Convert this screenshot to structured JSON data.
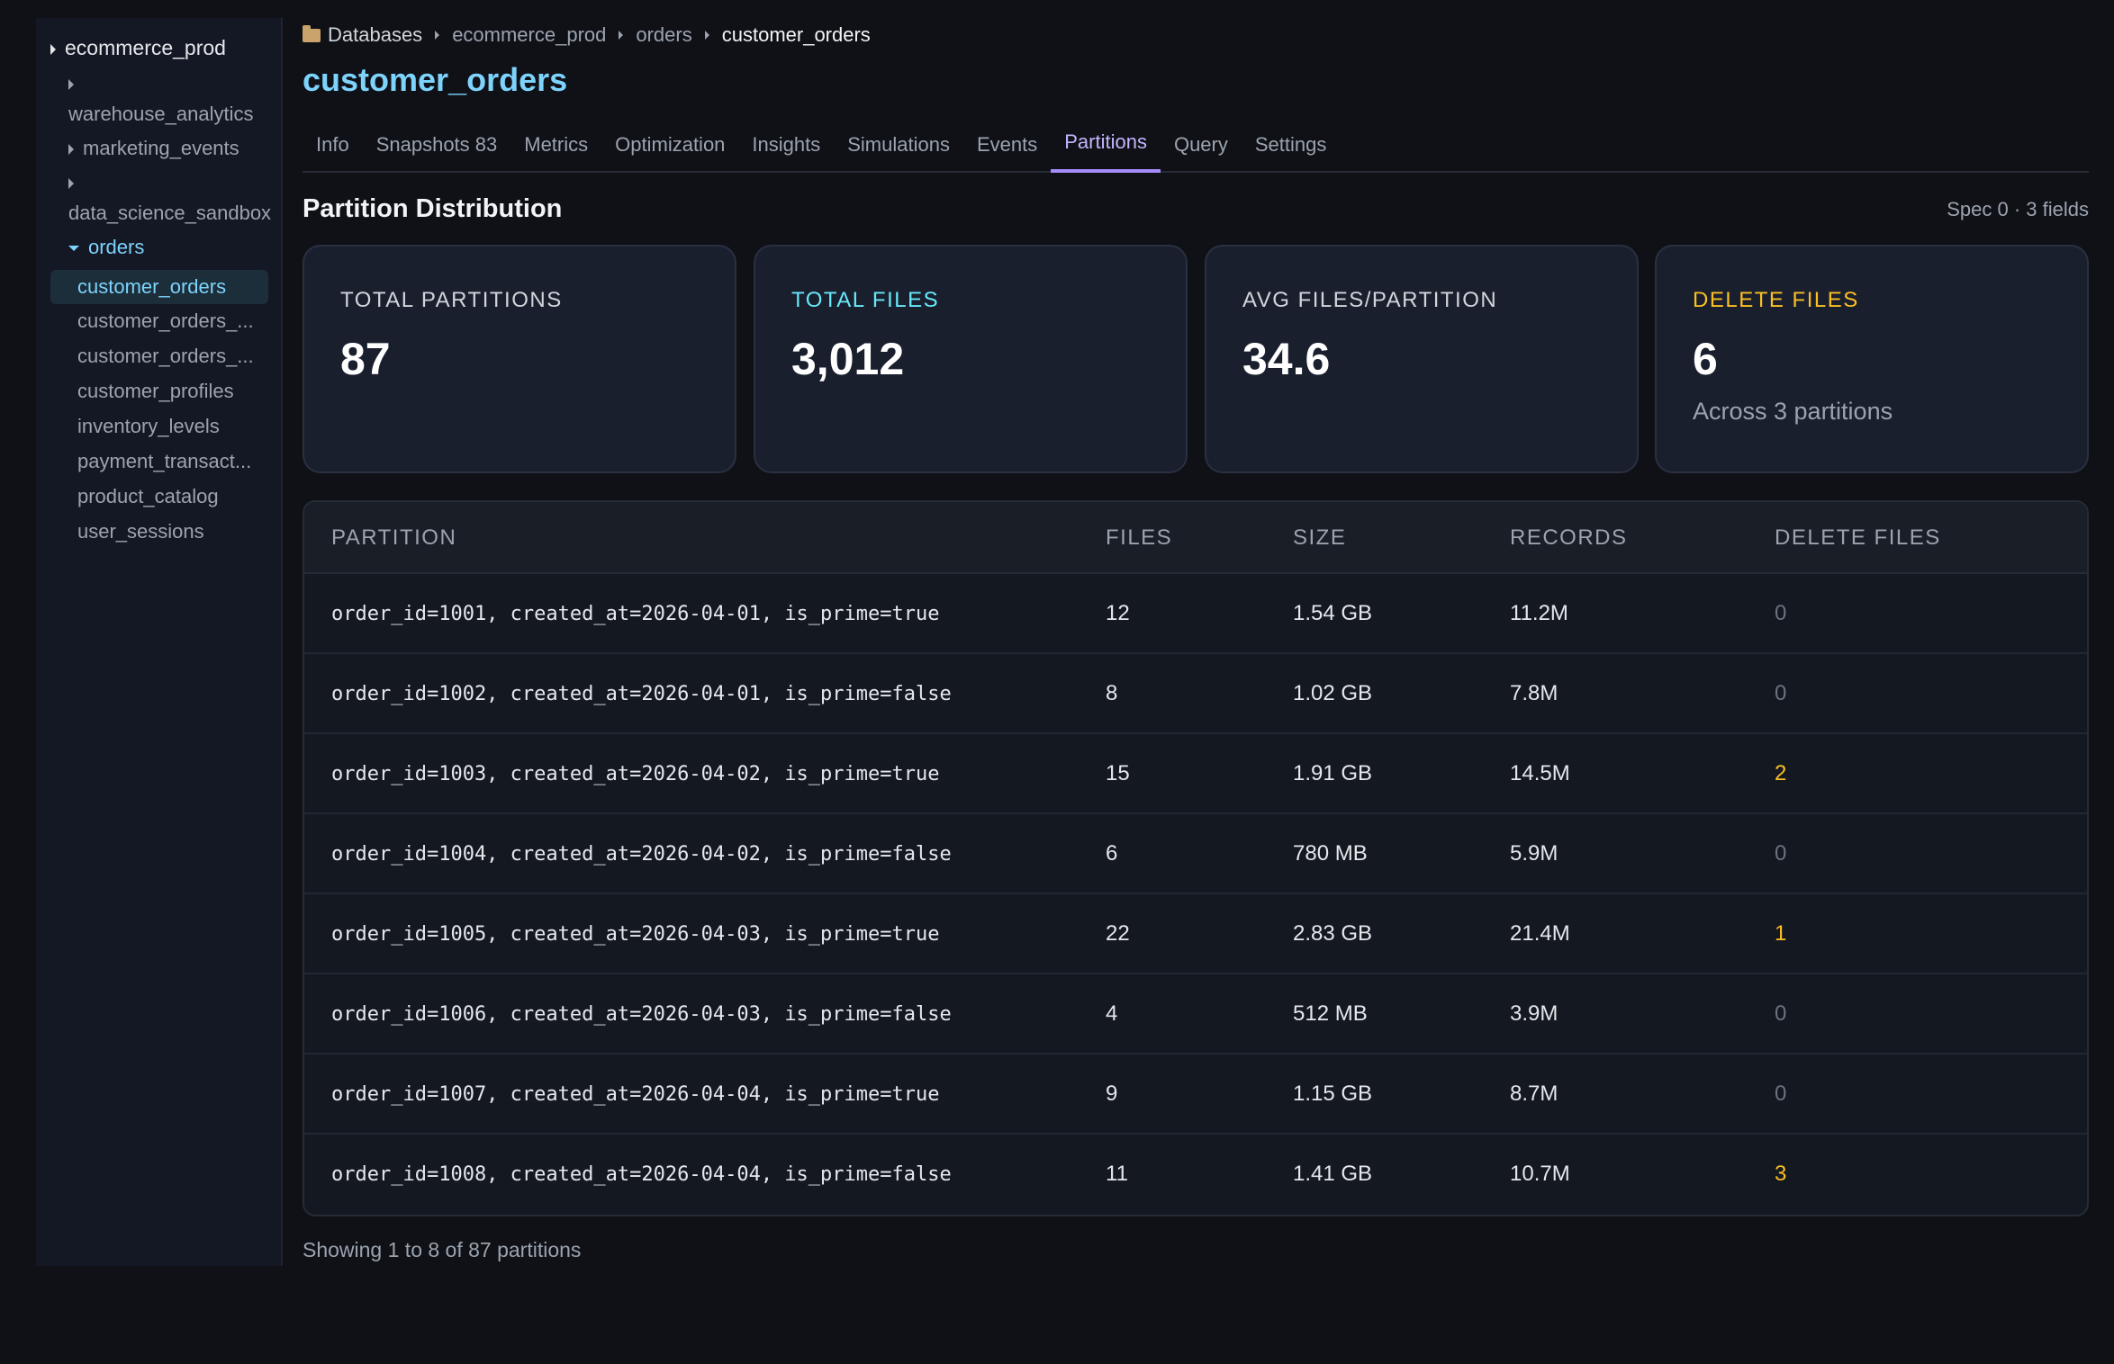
{
  "sidebar": {
    "root": "ecommerce_prod",
    "dbs": [
      "warehouse_analytics",
      "marketing_events",
      "data_science_sandbox"
    ],
    "open_namespace": "orders",
    "tables": [
      "customer_orders",
      "customer_orders_...",
      "customer_orders_...",
      "customer_profiles",
      "inventory_levels",
      "payment_transact...",
      "product_catalog",
      "user_sessions"
    ]
  },
  "breadcrumb": {
    "root": "Databases",
    "db": "ecommerce_prod",
    "namespace": "orders",
    "current": "customer_orders"
  },
  "page_title": "customer_orders",
  "tabs": [
    "Info",
    "Snapshots 83",
    "Metrics",
    "Optimization",
    "Insights",
    "Simulations",
    "Events",
    "Partitions",
    "Query",
    "Settings"
  ],
  "active_tab": "Partitions",
  "section": {
    "title": "Partition Distribution",
    "spec": "Spec 0 · 3 fields"
  },
  "cards": [
    {
      "label": "TOTAL PARTITIONS",
      "value": "87",
      "sub": ""
    },
    {
      "label": "TOTAL FILES",
      "value": "3,012",
      "sub": ""
    },
    {
      "label": "AVG FILES/PARTITION",
      "value": "34.6",
      "sub": ""
    },
    {
      "label": "DELETE FILES",
      "value": "6",
      "sub": "Across 3 partitions"
    }
  ],
  "colors": {
    "accent_cyan": "#67e8f9",
    "accent_amber": "#fbbf24",
    "accent_purple": "#a78bfa"
  },
  "table": {
    "headers": [
      "PARTITION",
      "FILES",
      "SIZE",
      "RECORDS",
      "DELETE FILES"
    ],
    "rows": [
      {
        "partition": "order_id=1001, created_at=2026-04-01, is_prime=true",
        "files": "12",
        "size": "1.54 GB",
        "records": "11.2M",
        "delete_files": "0"
      },
      {
        "partition": "order_id=1002, created_at=2026-04-01, is_prime=false",
        "files": "8",
        "size": "1.02 GB",
        "records": "7.8M",
        "delete_files": "0"
      },
      {
        "partition": "order_id=1003, created_at=2026-04-02, is_prime=true",
        "files": "15",
        "size": "1.91 GB",
        "records": "14.5M",
        "delete_files": "2"
      },
      {
        "partition": "order_id=1004, created_at=2026-04-02, is_prime=false",
        "files": "6",
        "size": "780 MB",
        "records": "5.9M",
        "delete_files": "0"
      },
      {
        "partition": "order_id=1005, created_at=2026-04-03, is_prime=true",
        "files": "22",
        "size": "2.83 GB",
        "records": "21.4M",
        "delete_files": "1"
      },
      {
        "partition": "order_id=1006, created_at=2026-04-03, is_prime=false",
        "files": "4",
        "size": "512 MB",
        "records": "3.9M",
        "delete_files": "0"
      },
      {
        "partition": "order_id=1007, created_at=2026-04-04, is_prime=true",
        "files": "9",
        "size": "1.15 GB",
        "records": "8.7M",
        "delete_files": "0"
      },
      {
        "partition": "order_id=1008, created_at=2026-04-04, is_prime=false",
        "files": "11",
        "size": "1.41 GB",
        "records": "10.7M",
        "delete_files": "3"
      }
    ]
  },
  "footer": "Showing 1 to 8 of 87 partitions"
}
